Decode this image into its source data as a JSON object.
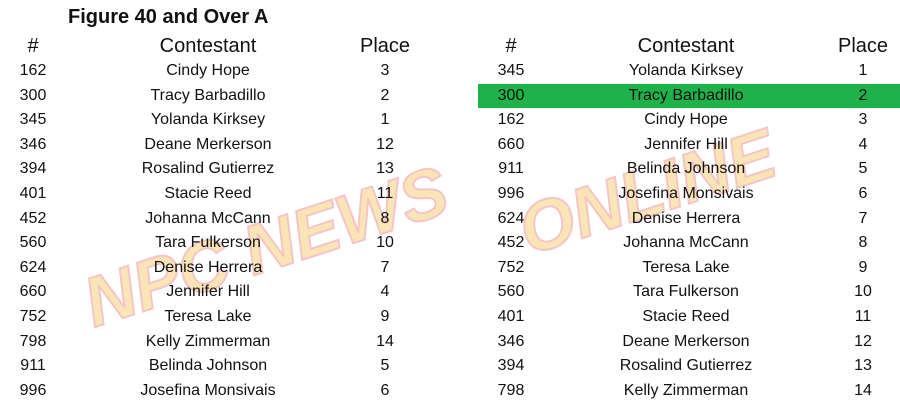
{
  "title": "Figure 40 and Over A",
  "headers": {
    "num": "#",
    "contestant": "Contestant",
    "place": "Place"
  },
  "highlight_color": "#1fb14a",
  "left_table": [
    {
      "num": "162",
      "name": "Cindy Hope",
      "place": "3"
    },
    {
      "num": "300",
      "name": "Tracy Barbadillo",
      "place": "2"
    },
    {
      "num": "345",
      "name": "Yolanda Kirksey",
      "place": "1"
    },
    {
      "num": "346",
      "name": "Deane Merkerson",
      "place": "12"
    },
    {
      "num": "394",
      "name": "Rosalind Gutierrez",
      "place": "13"
    },
    {
      "num": "401",
      "name": "Stacie Reed",
      "place": "11"
    },
    {
      "num": "452",
      "name": "Johanna McCann",
      "place": "8"
    },
    {
      "num": "560",
      "name": "Tara Fulkerson",
      "place": "10"
    },
    {
      "num": "624",
      "name": "Denise Herrera",
      "place": "7"
    },
    {
      "num": "660",
      "name": "Jennifer Hill",
      "place": "4"
    },
    {
      "num": "752",
      "name": "Teresa Lake",
      "place": "9"
    },
    {
      "num": "798",
      "name": "Kelly Zimmerman",
      "place": "14"
    },
    {
      "num": "911",
      "name": "Belinda Johnson",
      "place": "5"
    },
    {
      "num": "996",
      "name": "Josefina Monsivais",
      "place": "6"
    }
  ],
  "right_table": [
    {
      "num": "345",
      "name": "Yolanda Kirksey",
      "place": "1"
    },
    {
      "num": "300",
      "name": "Tracy Barbadillo",
      "place": "2",
      "highlighted": true
    },
    {
      "num": "162",
      "name": "Cindy Hope",
      "place": "3"
    },
    {
      "num": "660",
      "name": "Jennifer Hill",
      "place": "4"
    },
    {
      "num": "911",
      "name": "Belinda Johnson",
      "place": "5"
    },
    {
      "num": "996",
      "name": "Josefina Monsivais",
      "place": "6"
    },
    {
      "num": "624",
      "name": "Denise Herrera",
      "place": "7"
    },
    {
      "num": "452",
      "name": "Johanna McCann",
      "place": "8"
    },
    {
      "num": "752",
      "name": "Teresa Lake",
      "place": "9"
    },
    {
      "num": "560",
      "name": "Tara Fulkerson",
      "place": "10"
    },
    {
      "num": "401",
      "name": "Stacie Reed",
      "place": "11"
    },
    {
      "num": "346",
      "name": "Deane Merkerson",
      "place": "12"
    },
    {
      "num": "394",
      "name": "Rosalind Gutierrez",
      "place": "13"
    },
    {
      "num": "798",
      "name": "Kelly Zimmerman",
      "place": "14"
    }
  ],
  "watermark": "NPC News Online"
}
